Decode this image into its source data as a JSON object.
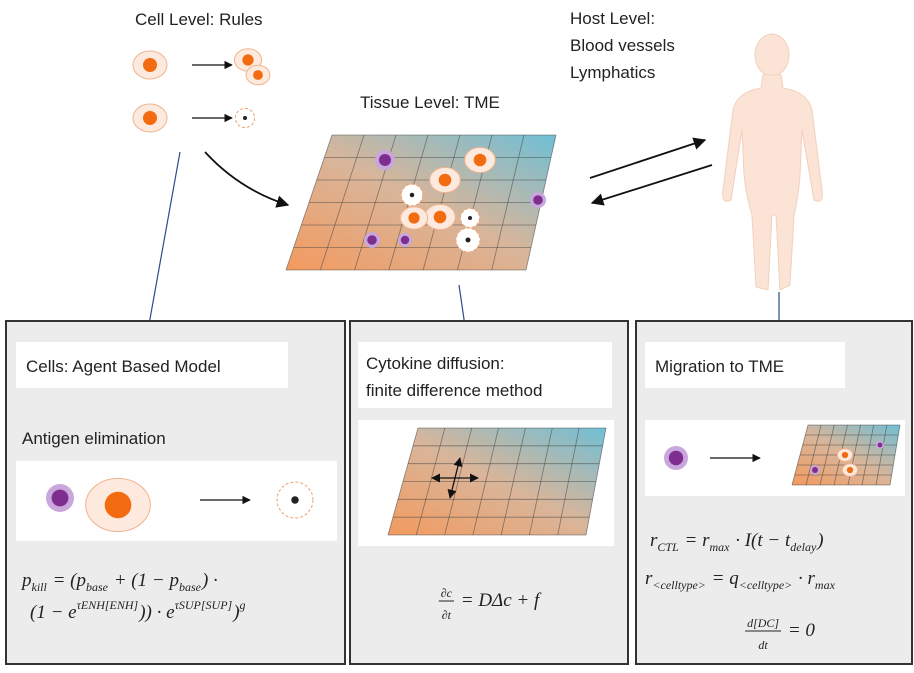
{
  "cell_level": "Cell Level: Rules",
  "host_level": [
    "Host Level:",
    "Blood vessels",
    "Lymphatics"
  ],
  "tissue_level": "Tissue Level: TME",
  "panels": [
    {
      "title": [
        "Cells: Agent Based Model"
      ],
      "subtitle": "Antigen elimination",
      "equations": [
        [
          "p",
          {
            "sub": "kill"
          },
          " = (",
          "p",
          {
            "sub": "base"
          },
          " + (1 − ",
          "p",
          {
            "sub": "base"
          },
          ") ·"
        ],
        [
          "(1 − e",
          {
            "sup": "τENH[ENH]"
          },
          ")) · e",
          {
            "sup": "τSUP[SUP]"
          },
          ")",
          {
            "sup": "g"
          }
        ]
      ]
    },
    {
      "title": [
        "Cytokine diffusion:",
        "finite difference method"
      ],
      "equations": [
        [
          {
            "num": "∂c",
            "den": "∂t"
          },
          " = DΔc + f"
        ]
      ]
    },
    {
      "title": [
        "Migration to TME"
      ],
      "equations": [
        [
          "r",
          {
            "sub": "CTL"
          },
          " = r",
          {
            "sub": "max"
          },
          " · I(t − t",
          {
            "sub": "delay"
          },
          ")"
        ],
        [
          "r",
          {
            "sub": "<celltype>"
          },
          " = q",
          {
            "sub": "<celltype>"
          },
          " · r",
          {
            "sub": "max"
          }
        ],
        [
          {
            "num": "d[DC]",
            "den": "dt"
          },
          " = 0"
        ]
      ]
    }
  ]
}
